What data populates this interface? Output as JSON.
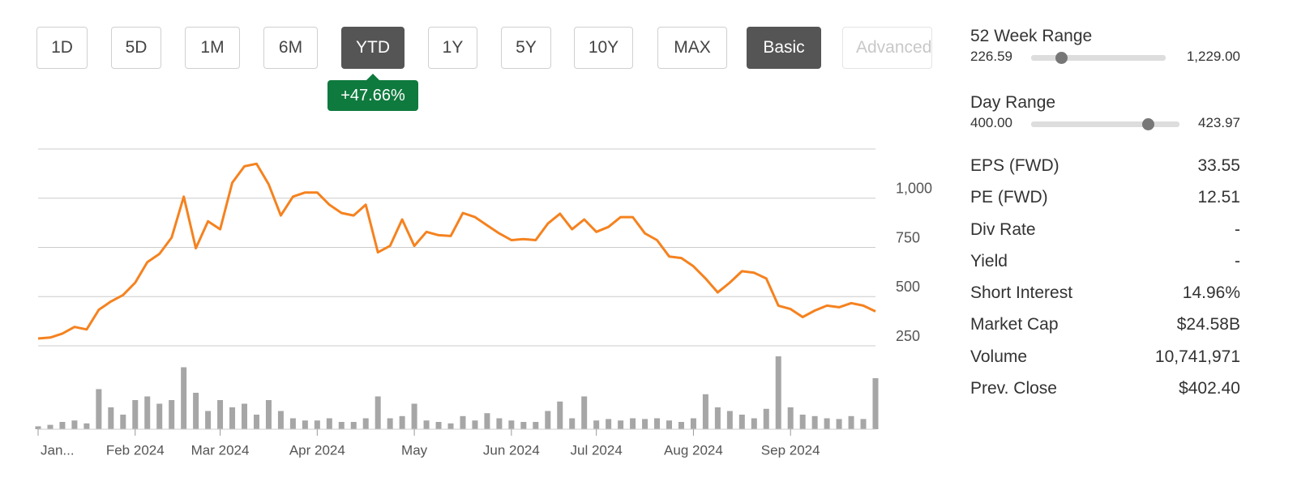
{
  "toolbar": {
    "periods": [
      "1D",
      "5D",
      "1M",
      "6M",
      "YTD",
      "1Y",
      "5Y",
      "10Y",
      "MAX"
    ],
    "selected_period": "YTD",
    "views": [
      "Basic",
      "Advanced"
    ],
    "selected_view": "Basic"
  },
  "change_badge": "+47.66%",
  "ranges": [
    {
      "label": "52 Week Range",
      "low": "226.59",
      "high": "1,229.00"
    },
    {
      "label": "Day Range",
      "low": "400.00",
      "high": "423.97"
    }
  ],
  "stats": [
    [
      "EPS (FWD)",
      "33.55"
    ],
    [
      "PE (FWD)",
      "12.51"
    ],
    [
      "Div Rate",
      "-"
    ],
    [
      "Yield",
      "-"
    ],
    [
      "Short Interest",
      "14.96%"
    ],
    [
      "Market Cap",
      "$24.58B"
    ],
    [
      "Volume",
      "10,741,971"
    ],
    [
      "Prev. Close",
      "$402.40"
    ]
  ],
  "chart_data": {
    "type": "line",
    "categories": [
      "Jan...",
      null,
      null,
      null,
      null,
      null,
      null,
      null,
      "Feb 2024",
      null,
      null,
      null,
      null,
      null,
      null,
      "Mar 2024",
      null,
      null,
      null,
      null,
      null,
      null,
      null,
      "Apr 2024",
      null,
      null,
      null,
      null,
      null,
      null,
      null,
      "May",
      null,
      null,
      null,
      null,
      null,
      null,
      null,
      "Jun 2024",
      null,
      null,
      null,
      null,
      null,
      null,
      "Jul 2024",
      null,
      null,
      null,
      null,
      null,
      null,
      null,
      "Aug 2024",
      null,
      null,
      null,
      null,
      null,
      null,
      null,
      "Sep 2024",
      null,
      null,
      null,
      null,
      null,
      null,
      null
    ],
    "series": [
      {
        "color": "#f5821f",
        "values": [
          287,
          292,
          312,
          346,
          333,
          433,
          475,
          508,
          571,
          675,
          717,
          800,
          1008,
          746,
          883,
          842,
          1079,
          1162,
          1175,
          1071,
          912,
          1008,
          1029,
          1029,
          967,
          925,
          912,
          967,
          725,
          758,
          892,
          758,
          829,
          812,
          808,
          925,
          904,
          862,
          821,
          787,
          792,
          787,
          871,
          921,
          842,
          892,
          829,
          854,
          904,
          904,
          821,
          787,
          704,
          696,
          654,
          592,
          521,
          571,
          629,
          621,
          592,
          454,
          437,
          396,
          429,
          454,
          446,
          467,
          454,
          425
        ]
      },
      {
        "type": "bar",
        "axis": "y2",
        "color": "#a6a6a6",
        "values": [
          4,
          6,
          10,
          12,
          8,
          55,
          30,
          20,
          40,
          45,
          35,
          40,
          85,
          50,
          25,
          40,
          30,
          35,
          20,
          40,
          25,
          15,
          12,
          12,
          15,
          10,
          10,
          15,
          45,
          15,
          18,
          35,
          12,
          10,
          8,
          18,
          12,
          22,
          15,
          12,
          10,
          10,
          25,
          38,
          15,
          45,
          12,
          14,
          12,
          15,
          14,
          15,
          12,
          10,
          15,
          48,
          30,
          25,
          20,
          15,
          28,
          100,
          30,
          20,
          18,
          15,
          14,
          18,
          14,
          70
        ]
      }
    ],
    "ylim": [
      250,
      1250
    ],
    "yticks": [
      250,
      500,
      750,
      {
        "value": 1000,
        "label": "1,000"
      }
    ],
    "y2lim": [
      0,
      100
    ],
    "grid": true
  }
}
